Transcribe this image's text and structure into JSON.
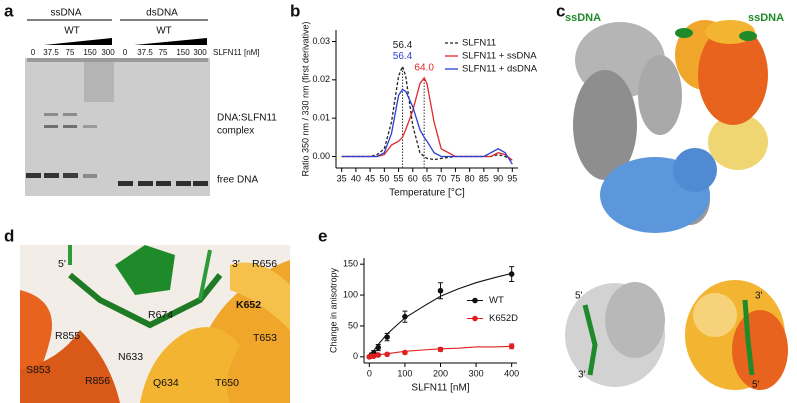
{
  "panel_a": {
    "panel": "a",
    "groups": [
      "ssDNA",
      "dsDNA"
    ],
    "conditions": [
      "WT",
      "WT"
    ],
    "lanes": [
      "0",
      "37.5",
      "75",
      "150",
      "300",
      "0",
      "37.5",
      "75",
      "150",
      "300"
    ],
    "conc_label": "SLFN11 [nM]",
    "complex_label": [
      "DNA:SLFN11",
      "complex"
    ],
    "free_label": "free DNA"
  },
  "chart_data": [
    {
      "type": "line",
      "panel": "b",
      "xlabel": "Temperature [°C]",
      "ylabel": "Ratio 350 nm / 330 nm (first derivative)",
      "x": [
        35,
        40,
        45,
        47.5,
        50,
        52.5,
        55,
        56.4,
        57.5,
        60,
        62.5,
        64,
        65,
        67.5,
        70,
        75,
        80,
        85,
        87.5,
        90,
        92.5,
        95
      ],
      "series": [
        {
          "name": "SLFN11",
          "color": "#222222",
          "dash": true,
          "values": [
            0,
            0,
            0,
            0.0005,
            0.002,
            0.009,
            0.021,
            0.0235,
            0.021,
            0.008,
            0.001,
            0,
            -0.0005,
            -0.0008,
            -0.0005,
            0,
            0,
            0,
            0,
            0.0005,
            0,
            -0.001
          ]
        },
        {
          "name": "SLFN11 + ssDNA",
          "color": "#e0292b",
          "dash": false,
          "values": [
            0,
            0,
            0,
            0,
            0.0005,
            0.003,
            0.004,
            0.005,
            0.007,
            0.012,
            0.019,
            0.0205,
            0.019,
            0.009,
            0.002,
            0,
            0,
            0,
            0,
            0.001,
            0.0005,
            -0.001
          ]
        },
        {
          "name": "SLFN11 + dsDNA",
          "color": "#2a3fd0",
          "dash": false,
          "values": [
            0,
            0,
            0,
            0,
            0.001,
            0.006,
            0.016,
            0.0175,
            0.017,
            0.013,
            0.007,
            0.005,
            0.004,
            0.001,
            0,
            0,
            0,
            0,
            0.001,
            0.002,
            0.001,
            -0.002
          ]
        }
      ],
      "peak_labels": [
        {
          "label": "56.4",
          "value": 56.4,
          "series": 0
        },
        {
          "label": "56.4",
          "value": 56.4,
          "series": 2
        },
        {
          "label": "64.0",
          "value": 64.0,
          "series": 1
        }
      ],
      "xlim": [
        33,
        97
      ],
      "xticks": [
        35,
        40,
        45,
        50,
        55,
        60,
        65,
        70,
        75,
        80,
        85,
        90,
        95
      ],
      "ylim": [
        -0.003,
        0.033
      ],
      "yticks": [
        {
          "value": 0,
          "label": "0.00"
        },
        {
          "value": 0.01,
          "label": "0.01"
        },
        {
          "value": 0.02,
          "label": "0.02"
        },
        {
          "value": 0.03,
          "label": "0.03"
        }
      ],
      "legend": "upper right"
    },
    {
      "type": "scatter",
      "panel": "e",
      "xlabel": "SLFN11 [nM]",
      "ylabel": "Change in anisotropy",
      "x": [
        0,
        6.25,
        12.5,
        25,
        50,
        100,
        200,
        400
      ],
      "fit_x": [
        0,
        25,
        50,
        100,
        150,
        200,
        250,
        300,
        350,
        400
      ],
      "series": [
        {
          "name": "WT",
          "color": "#111111",
          "values": [
            0,
            3,
            6,
            15,
            32,
            65,
            107,
            134
          ],
          "errors": [
            2,
            3,
            4,
            5,
            6,
            9,
            13,
            12
          ],
          "fit": [
            0,
            20,
            37,
            63,
            81,
            98,
            110,
            120,
            128,
            135
          ]
        },
        {
          "name": "K652D",
          "color": "#e02020",
          "values": [
            0,
            1,
            1,
            3,
            4,
            7,
            12,
            17
          ],
          "errors": [
            1,
            1,
            1,
            2,
            2,
            2,
            3,
            4
          ],
          "fit": [
            0,
            3,
            5,
            9,
            11,
            13,
            14,
            16,
            16,
            17
          ]
        }
      ],
      "xlim": [
        -15,
        415
      ],
      "xticks": [
        0,
        100,
        200,
        300,
        400
      ],
      "ylim": [
        -10,
        160
      ],
      "yticks": [
        0,
        50,
        100,
        150
      ],
      "legend": "center right"
    }
  ],
  "panel_c": {
    "panel": "c",
    "ssdna_labels": [
      "ssDNA",
      "ssDNA"
    ],
    "end_labels": [
      "5'",
      "3'",
      "3'",
      "5'"
    ]
  },
  "panel_d": {
    "panel": "d",
    "end_labels": [
      "5'",
      "3'"
    ],
    "residues": [
      "R656",
      "K652",
      "T653",
      "R674",
      "R855",
      "N633",
      "S853",
      "R856",
      "Q634",
      "T650"
    ]
  }
}
